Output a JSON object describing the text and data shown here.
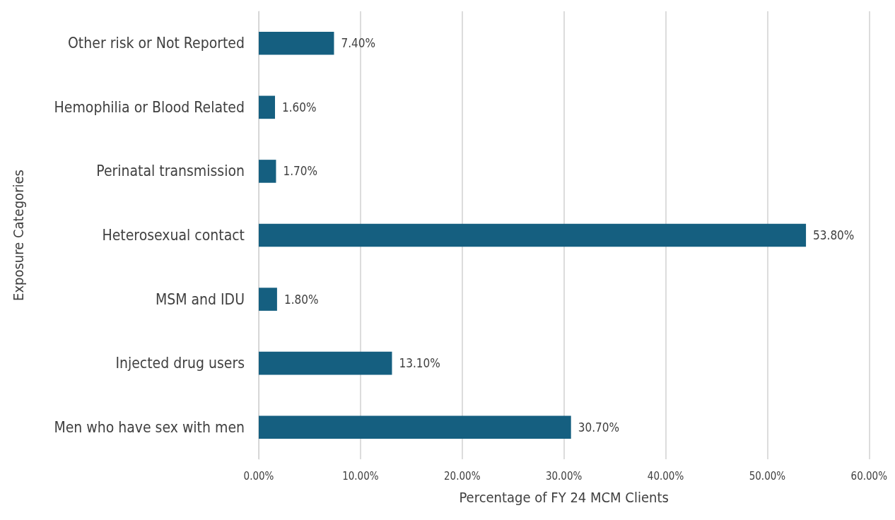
{
  "chart_data": {
    "type": "bar",
    "orientation": "horizontal",
    "xlabel": "Percentage of FY 24 MCM Clients",
    "ylabel": "Exposure Categories",
    "categories": [
      "Other risk or Not Reported",
      "Hemophilia or Blood Related",
      "Perinatal transmission",
      "Heterosexual contact",
      "MSM and IDU",
      "Injected drug users",
      "Men who have sex with men"
    ],
    "values": [
      7.4,
      1.6,
      1.7,
      53.8,
      1.8,
      13.1,
      30.7
    ],
    "value_labels": [
      "7.40%",
      "1.60%",
      "1.70%",
      "53.80%",
      "1.80%",
      "13.10%",
      "30.70%"
    ],
    "color": "#155f80",
    "xlim": [
      0,
      60
    ],
    "xticks": [
      {
        "value": 0,
        "label": "0.00%"
      },
      {
        "value": 10,
        "label": "10.00%"
      },
      {
        "value": 20,
        "label": "20.00%"
      },
      {
        "value": 30,
        "label": "30.00%"
      },
      {
        "value": 40,
        "label": "40.00%"
      },
      {
        "value": 50,
        "label": "50.00%"
      },
      {
        "value": 60,
        "label": "60.00%"
      }
    ],
    "grid": "x"
  }
}
